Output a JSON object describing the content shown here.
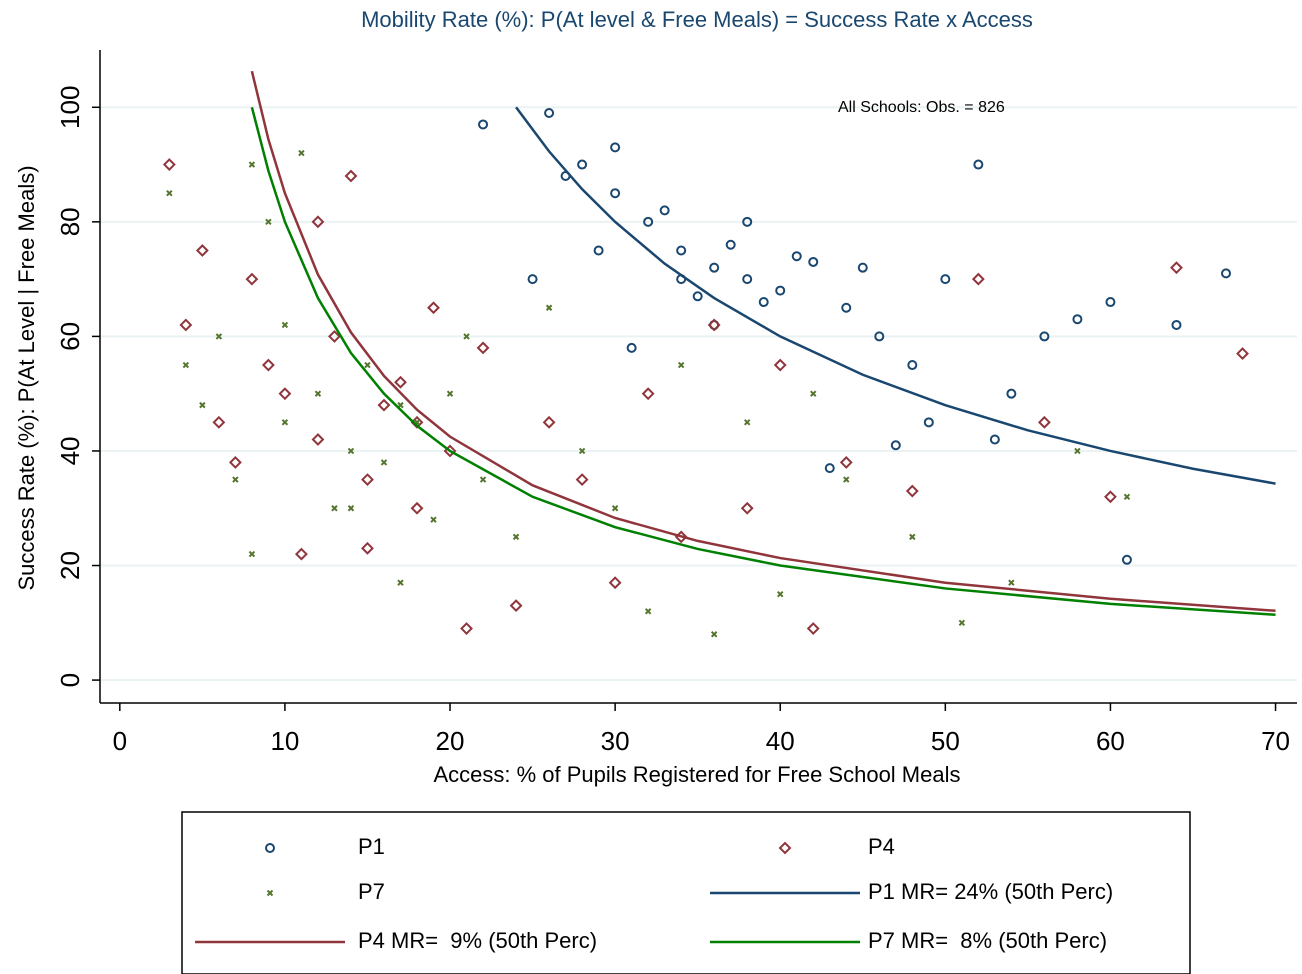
{
  "chart_data": {
    "type": "scatter",
    "title": "Mobility Rate (%): P(At level & Free Meals) = Success Rate x Access",
    "x_label": "Access: % of Pupils Registered for Free School Meals",
    "y_label": "Success Rate (%): P(At Level | Free Meals)",
    "note": "All Schools: Obs. = 826",
    "xlim": [
      -1.2,
      71.3
    ],
    "xticks": [
      0,
      10,
      20,
      30,
      40,
      50,
      60,
      70
    ],
    "ylim": [
      -4,
      110
    ],
    "yticks": [
      0,
      20,
      40,
      60,
      80,
      100
    ],
    "grid": true,
    "legend": "bottom",
    "series": [
      {
        "name": "P1",
        "color": "#1a476f",
        "mode": "markers",
        "marker": "circle",
        "x": [
          22,
          26,
          28,
          30,
          32,
          34,
          36,
          38,
          40,
          42,
          44,
          46,
          48,
          50,
          52,
          54,
          56,
          58,
          60,
          61,
          64,
          67,
          25,
          29,
          33,
          37,
          39,
          41,
          35,
          31,
          27,
          45,
          49,
          53,
          38,
          36,
          34,
          30,
          43,
          47
        ],
        "values": [
          97,
          99,
          90,
          85,
          80,
          75,
          72,
          70,
          68,
          73,
          65,
          60,
          55,
          70,
          90,
          50,
          60,
          63,
          66,
          21,
          62,
          71,
          70,
          75,
          82,
          76,
          66,
          74,
          67,
          58,
          88,
          72,
          45,
          42,
          80,
          62,
          70,
          93,
          37,
          41
        ]
      },
      {
        "name": "P4",
        "color": "#90353b",
        "mode": "markers",
        "marker": "diamond",
        "x": [
          3,
          4,
          5,
          6,
          7,
          8,
          9,
          10,
          11,
          12,
          13,
          14,
          15,
          16,
          17,
          18,
          19,
          20,
          21,
          22,
          24,
          26,
          28,
          30,
          32,
          34,
          36,
          38,
          40,
          42,
          44,
          48,
          52,
          56,
          60,
          64,
          68,
          15,
          12,
          18
        ],
        "values": [
          90,
          62,
          75,
          45,
          38,
          70,
          55,
          50,
          22,
          42,
          60,
          88,
          35,
          48,
          52,
          30,
          65,
          40,
          9,
          58,
          13,
          45,
          35,
          17,
          50,
          25,
          62,
          30,
          55,
          9,
          38,
          33,
          70,
          45,
          32,
          72,
          57,
          23,
          80,
          45
        ]
      },
      {
        "name": "P7",
        "color": "#55752f",
        "mode": "markers",
        "marker": "cross",
        "x": [
          3,
          4,
          5,
          6,
          7,
          8,
          9,
          10,
          11,
          12,
          13,
          14,
          15,
          16,
          17,
          18,
          19,
          20,
          21,
          22,
          24,
          26,
          28,
          30,
          32,
          34,
          36,
          38,
          40,
          42,
          44,
          48,
          51,
          54,
          58,
          61,
          10,
          14,
          17,
          8
        ],
        "values": [
          85,
          55,
          48,
          60,
          35,
          22,
          80,
          45,
          92,
          50,
          30,
          40,
          55,
          38,
          17,
          45,
          28,
          50,
          60,
          35,
          25,
          65,
          40,
          30,
          12,
          55,
          8,
          45,
          15,
          50,
          35,
          25,
          10,
          17,
          40,
          32,
          62,
          30,
          48,
          90
        ]
      },
      {
        "name": "P1 MR= 24% (50th Perc)",
        "color": "#1a476f",
        "mode": "line",
        "x": [
          24,
          26,
          28,
          30,
          33,
          36,
          40,
          45,
          50,
          55,
          60,
          65,
          70
        ],
        "values": [
          100,
          92.3,
          85.7,
          80,
          72.7,
          66.7,
          60,
          53.3,
          48,
          43.6,
          40,
          36.9,
          34.3
        ]
      },
      {
        "name": "P4 MR=  9% (50th Perc)",
        "color": "#90353b",
        "mode": "line",
        "x": [
          8,
          9,
          10,
          12,
          14,
          16,
          18,
          20,
          25,
          30,
          35,
          40,
          50,
          60,
          70
        ],
        "values": [
          106.3,
          94.4,
          85,
          70.8,
          60.7,
          53.1,
          47.2,
          42.5,
          34,
          28.3,
          24.3,
          21.3,
          17,
          14.2,
          12.1
        ]
      },
      {
        "name": "P7 MR=  8% (50th Perc)",
        "color": "#008000",
        "mode": "line",
        "x": [
          8,
          9,
          10,
          12,
          14,
          16,
          18,
          20,
          25,
          30,
          35,
          40,
          50,
          60,
          70
        ],
        "values": [
          100,
          88.9,
          80,
          66.7,
          57.1,
          50,
          44.4,
          40,
          32,
          26.7,
          22.9,
          20,
          16,
          13.3,
          11.4
        ]
      }
    ]
  }
}
